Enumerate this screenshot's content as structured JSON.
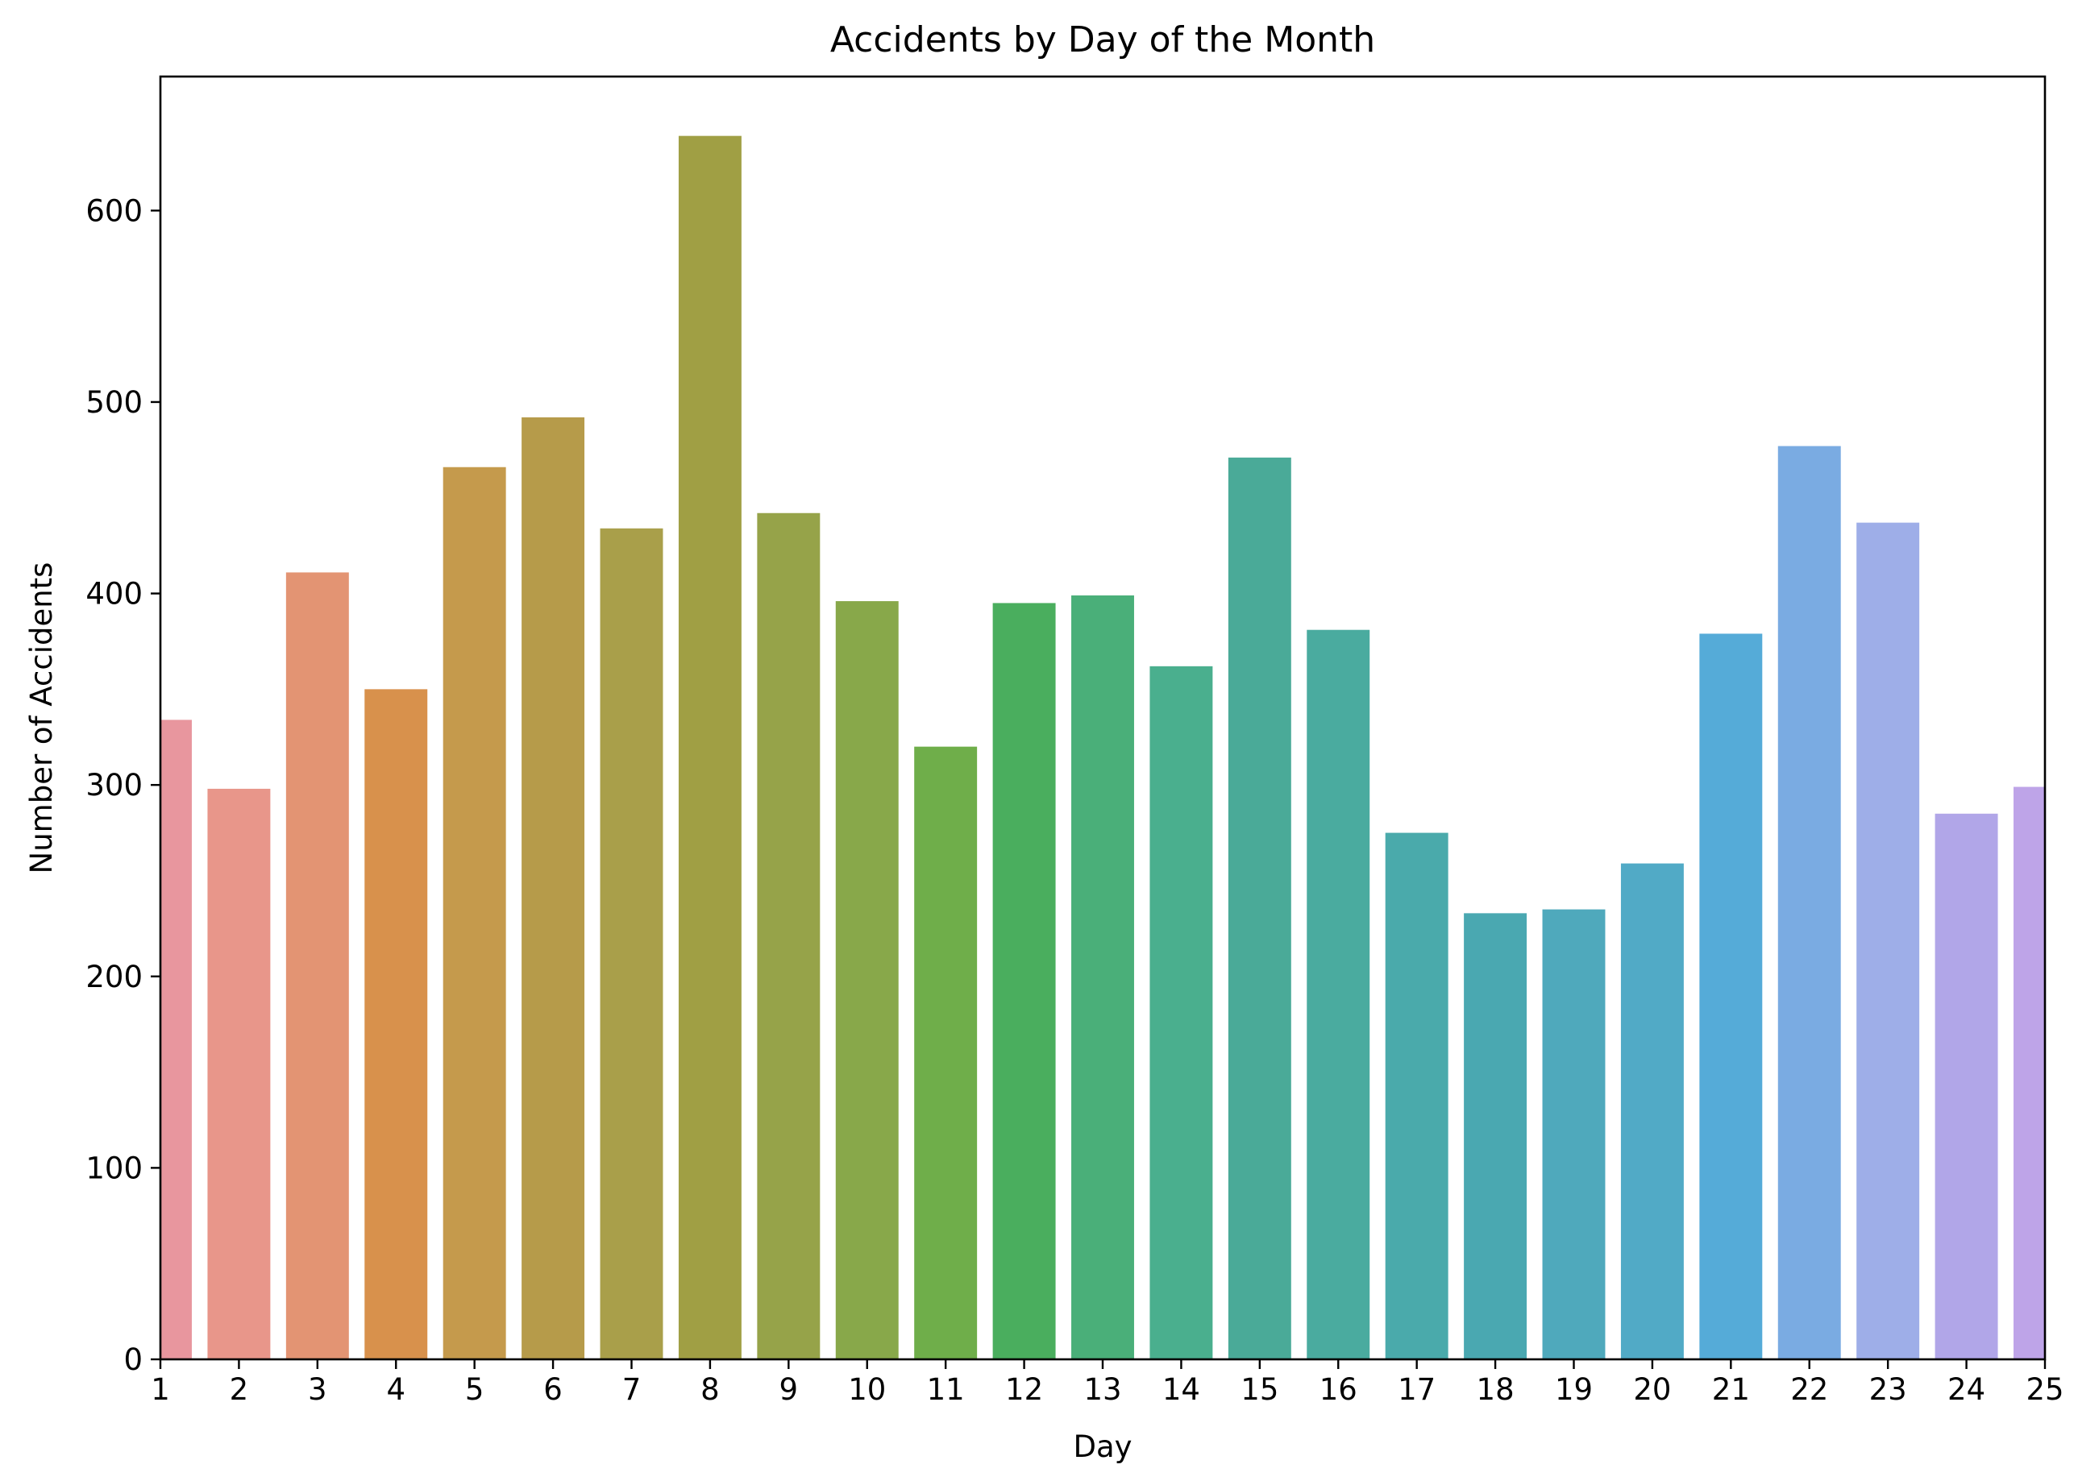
{
  "chart_data": {
    "type": "bar",
    "title": "Accidents by Day of the Month",
    "xlabel": "Day",
    "ylabel": "Number of Accidents",
    "categories": [
      "1",
      "2",
      "3",
      "4",
      "5",
      "6",
      "7",
      "8",
      "9",
      "10",
      "11",
      "12",
      "13",
      "14",
      "15",
      "16",
      "17",
      "18",
      "19",
      "20",
      "21",
      "22",
      "23",
      "24",
      "25"
    ],
    "values": [
      334,
      298,
      411,
      350,
      466,
      492,
      434,
      639,
      442,
      396,
      320,
      395,
      399,
      362,
      471,
      381,
      275,
      233,
      235,
      259,
      379,
      477,
      437,
      285,
      299
    ],
    "ylim": [
      0,
      670
    ],
    "yticks": [
      0,
      100,
      200,
      300,
      400,
      500,
      600
    ],
    "grid": false,
    "legend": "none",
    "colors": [
      "#e8969e",
      "#e8968a",
      "#e39473",
      "#d8914c",
      "#c59a4c",
      "#b69b4a",
      "#a99f4a",
      "#a09f44",
      "#96a349",
      "#88a84a",
      "#6fae4a",
      "#4aae5e",
      "#4aaf79",
      "#4aaf8e",
      "#4aaa98",
      "#4aab9f",
      "#4aaaab",
      "#4aa8b1",
      "#4fa9bc",
      "#51aac6",
      "#55abd8",
      "#7aabe2",
      "#9eaee8",
      "#b1a6e8",
      "#bea4e8"
    ]
  }
}
